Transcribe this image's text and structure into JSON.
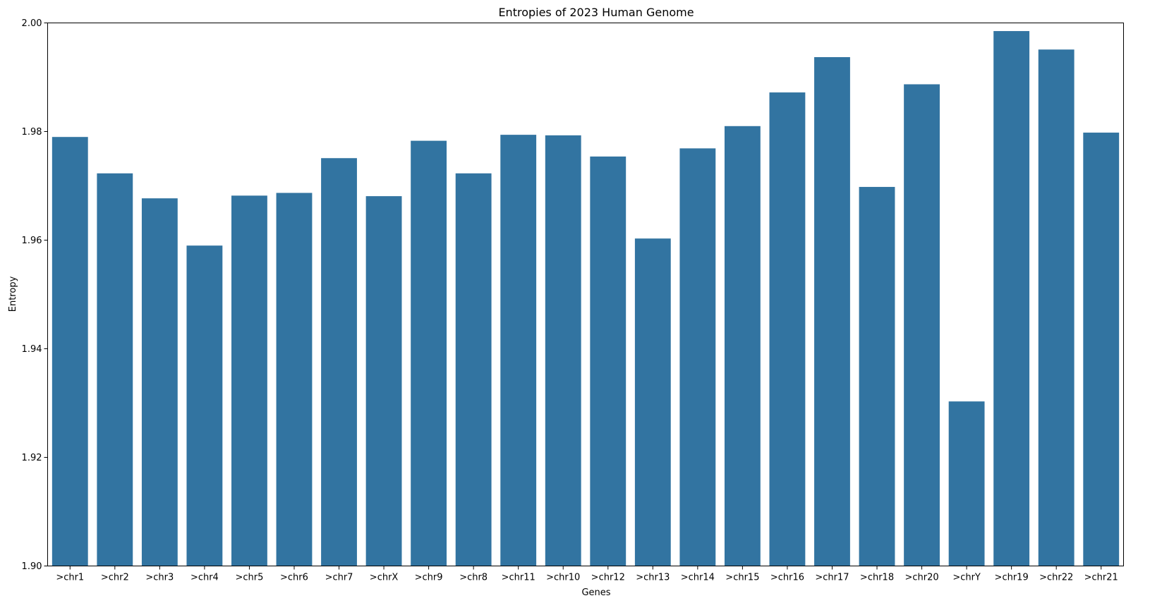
{
  "chart_data": {
    "type": "bar",
    "title": "Entropies of 2023 Human Genome",
    "xlabel": "Genes",
    "ylabel": "Entropy",
    "ylim": [
      1.9,
      2.0
    ],
    "yticks": [
      1.9,
      1.92,
      1.94,
      1.96,
      1.98,
      2.0
    ],
    "ytick_labels": [
      "1.90",
      "1.92",
      "1.94",
      "1.96",
      "1.98",
      "2.00"
    ],
    "grid": false,
    "bar_color": "#3274a1",
    "categories": [
      ">chr1",
      ">chr2",
      ">chr3",
      ">chr4",
      ">chr5",
      ">chr6",
      ">chr7",
      ">chrX",
      ">chr9",
      ">chr8",
      ">chr11",
      ">chr10",
      ">chr12",
      ">chr13",
      ">chr14",
      ">chr15",
      ">chr16",
      ">chr17",
      ">chr18",
      ">chr20",
      ">chrY",
      ">chr19",
      ">chr22",
      ">chr21"
    ],
    "values": [
      1.979,
      1.9723,
      1.9677,
      1.959,
      1.9682,
      1.9687,
      1.9751,
      1.9681,
      1.9783,
      1.9723,
      1.9794,
      1.9793,
      1.9754,
      1.9603,
      1.9769,
      1.981,
      1.9872,
      1.9937,
      1.9698,
      1.9887,
      1.9303,
      1.9985,
      1.9951,
      1.9798
    ]
  }
}
